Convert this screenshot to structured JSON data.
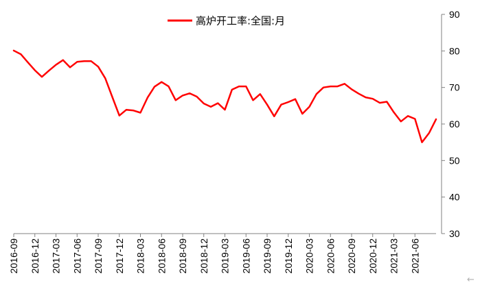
{
  "chart_data": {
    "type": "line",
    "title": "",
    "xlabel": "",
    "ylabel": "",
    "legend_position": "top-center",
    "grid": false,
    "y_axis_position": "right",
    "ylim": [
      30,
      90
    ],
    "yticks": [
      "30",
      "40",
      "50",
      "60",
      "70",
      "80",
      "90"
    ],
    "xtick_labels": [
      "2016-09",
      "2016-12",
      "2017-03",
      "2017-06",
      "2017-09",
      "2017-12",
      "2018-03",
      "2018-06",
      "2018-09",
      "2018-12",
      "2019-03",
      "2019-06",
      "2019-09",
      "2019-12",
      "2020-03",
      "2020-06",
      "2020-09",
      "2020-12",
      "2021-03",
      "2021-06"
    ],
    "x": [
      "2016-09",
      "2016-10",
      "2016-11",
      "2016-12",
      "2017-01",
      "2017-02",
      "2017-03",
      "2017-04",
      "2017-05",
      "2017-06",
      "2017-07",
      "2017-08",
      "2017-09",
      "2017-10",
      "2017-11",
      "2017-12",
      "2018-01",
      "2018-02",
      "2018-03",
      "2018-04",
      "2018-05",
      "2018-06",
      "2018-07",
      "2018-08",
      "2018-09",
      "2018-10",
      "2018-11",
      "2018-12",
      "2019-01",
      "2019-02",
      "2019-03",
      "2019-04",
      "2019-05",
      "2019-06",
      "2019-07",
      "2019-08",
      "2019-09",
      "2019-10",
      "2019-11",
      "2019-12",
      "2020-01",
      "2020-02",
      "2020-03",
      "2020-04",
      "2020-05",
      "2020-06",
      "2020-07",
      "2020-08",
      "2020-09",
      "2020-10",
      "2020-11",
      "2020-12",
      "2021-01",
      "2021-02",
      "2021-03",
      "2021-04",
      "2021-05",
      "2021-06",
      "2021-07",
      "2021-08",
      "2021-09"
    ],
    "series": [
      {
        "name": "高炉开工率:全国:月",
        "color": "#ff0000",
        "values": [
          80.1,
          79.1,
          76.9,
          74.7,
          72.9,
          74.6,
          76.2,
          77.5,
          75.5,
          77.0,
          77.2,
          77.2,
          75.7,
          72.5,
          67.4,
          62.3,
          63.9,
          63.7,
          63.1,
          67.2,
          70.2,
          71.5,
          70.3,
          66.5,
          67.8,
          68.4,
          67.5,
          65.6,
          64.7,
          65.7,
          63.9,
          69.4,
          70.3,
          70.3,
          66.5,
          68.2,
          65.3,
          62.1,
          65.3,
          66.0,
          66.8,
          62.8,
          64.7,
          68.2,
          70.0,
          70.3,
          70.3,
          71.0,
          69.5,
          68.3,
          67.3,
          66.9,
          65.8,
          66.1,
          63.2,
          60.7,
          62.2,
          61.4,
          55.0,
          57.5,
          61.3
        ]
      }
    ]
  },
  "ui": {
    "back_arrow_icon": "arrow-left-icon",
    "back_arrow_glyph": "←"
  }
}
